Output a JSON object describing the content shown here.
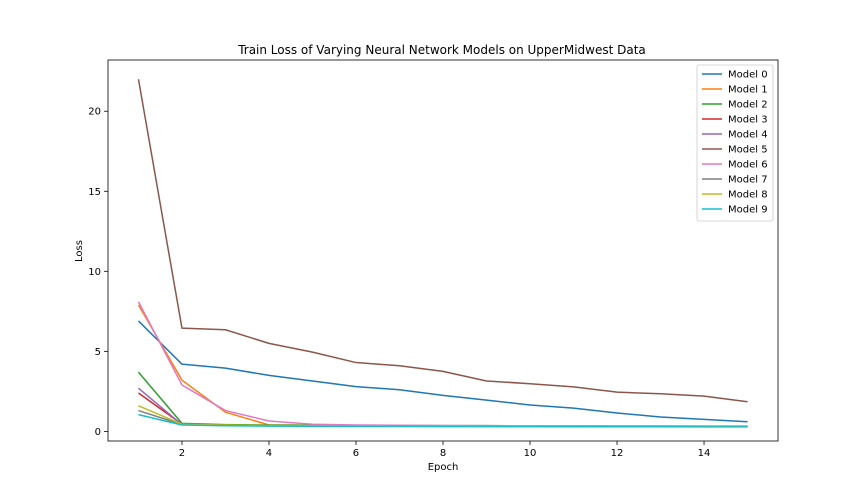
{
  "chart_data": {
    "type": "line",
    "title": "Train Loss of Varying Neural Network Models on UpperMidwest Data",
    "xlabel": "Epoch",
    "ylabel": "Loss",
    "xlim": [
      0.3,
      15.7
    ],
    "ylim": [
      -0.6,
      23.2
    ],
    "xticks": [
      2,
      4,
      6,
      8,
      10,
      12,
      14
    ],
    "yticks": [
      0,
      5,
      10,
      15,
      20
    ],
    "grid": false,
    "legend_position": "top-right",
    "x": [
      1,
      2,
      3,
      4,
      5,
      6,
      7,
      8,
      9,
      10,
      11,
      12,
      13,
      14,
      15
    ],
    "series": [
      {
        "name": "Model 0",
        "color": "#1f77b4",
        "values": [
          6.9,
          4.2,
          3.95,
          3.5,
          3.15,
          2.8,
          2.6,
          2.25,
          1.95,
          1.65,
          1.45,
          1.15,
          0.9,
          0.75,
          0.6
        ]
      },
      {
        "name": "Model 1",
        "color": "#ff7f0e",
        "values": [
          7.9,
          3.2,
          1.2,
          0.4,
          0.38,
          0.36,
          0.35,
          0.34,
          0.33,
          0.33,
          0.32,
          0.32,
          0.31,
          0.31,
          0.3
        ]
      },
      {
        "name": "Model 2",
        "color": "#2ca02c",
        "values": [
          3.7,
          0.5,
          0.42,
          0.4,
          0.39,
          0.38,
          0.37,
          0.36,
          0.36,
          0.35,
          0.35,
          0.34,
          0.34,
          0.33,
          0.33
        ]
      },
      {
        "name": "Model 3",
        "color": "#d62728",
        "values": [
          2.4,
          0.45,
          0.38,
          0.36,
          0.35,
          0.34,
          0.33,
          0.33,
          0.32,
          0.32,
          0.31,
          0.31,
          0.3,
          0.3,
          0.3
        ]
      },
      {
        "name": "Model 4",
        "color": "#9467bd",
        "values": [
          2.7,
          0.42,
          0.37,
          0.35,
          0.34,
          0.33,
          0.33,
          0.32,
          0.32,
          0.31,
          0.31,
          0.3,
          0.3,
          0.3,
          0.29
        ]
      },
      {
        "name": "Model 5",
        "color": "#8c564b",
        "values": [
          22.0,
          6.45,
          6.35,
          5.5,
          4.95,
          4.3,
          4.1,
          3.75,
          3.15,
          2.98,
          2.78,
          2.45,
          2.35,
          2.2,
          1.85
        ]
      },
      {
        "name": "Model 6",
        "color": "#e377c2",
        "values": [
          8.1,
          2.9,
          1.3,
          0.65,
          0.45,
          0.4,
          0.38,
          0.37,
          0.36,
          0.35,
          0.35,
          0.34,
          0.34,
          0.33,
          0.33
        ]
      },
      {
        "name": "Model 7",
        "color": "#7f7f7f",
        "values": [
          1.3,
          0.43,
          0.38,
          0.36,
          0.35,
          0.34,
          0.34,
          0.33,
          0.33,
          0.32,
          0.32,
          0.32,
          0.31,
          0.31,
          0.31
        ]
      },
      {
        "name": "Model 8",
        "color": "#bcbd22",
        "values": [
          1.6,
          0.45,
          0.39,
          0.37,
          0.36,
          0.35,
          0.34,
          0.34,
          0.33,
          0.33,
          0.32,
          0.32,
          0.32,
          0.31,
          0.31
        ]
      },
      {
        "name": "Model 9",
        "color": "#17becf",
        "values": [
          1.05,
          0.4,
          0.35,
          0.33,
          0.32,
          0.31,
          0.31,
          0.3,
          0.3,
          0.3,
          0.29,
          0.29,
          0.29,
          0.28,
          0.28
        ]
      }
    ]
  }
}
